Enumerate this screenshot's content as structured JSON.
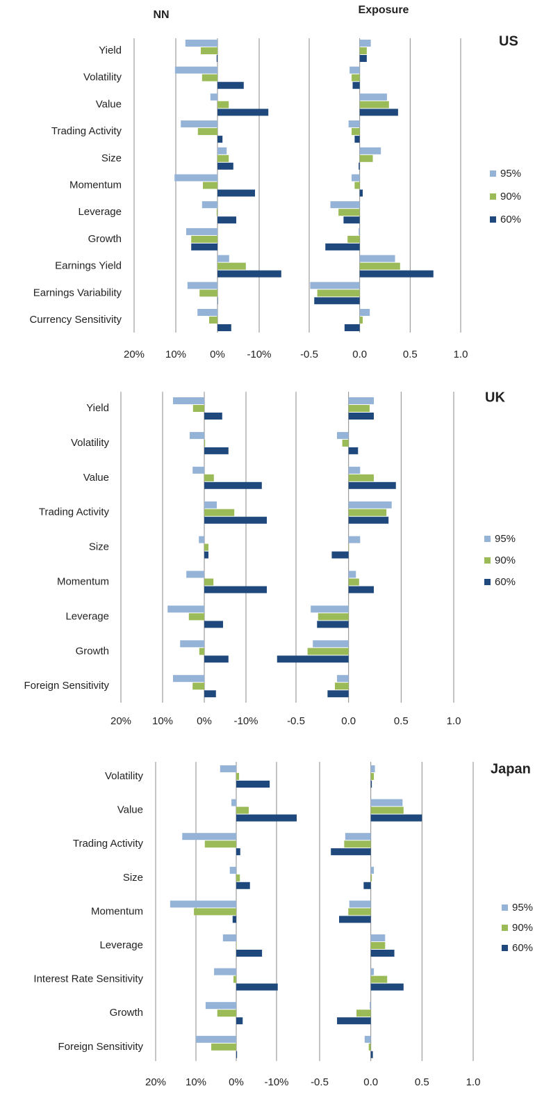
{
  "chart_data": [
    {
      "type": "bar",
      "title": "NN",
      "categories": [
        "Yield",
        "Volatility",
        "Value",
        "Trading Activity",
        "Size",
        "Momentum",
        "Leverage",
        "Growth",
        "Earnings Yield",
        "Earnings Variability",
        "Currency Sensitivity"
      ],
      "series": [
        {
          "color": "#95b3d7",
          "values": [
            7.7,
            10.2,
            1.7,
            8.8,
            -2.2,
            10.3,
            3.7,
            7.5,
            -2.8,
            7.2,
            4.8
          ]
        },
        {
          "color": "#9bbb59",
          "values": [
            4,
            3.7,
            -2.7,
            4.7,
            -2.7,
            3.5,
            0.2,
            6.3,
            -6.8,
            4.3,
            2
          ]
        },
        {
          "color": "#1f497d",
          "values": [
            0.2,
            -6.3,
            -12.2,
            -1.2,
            -3.8,
            -9,
            -4.5,
            6.3,
            -15.3,
            0,
            -3.3
          ]
        }
      ],
      "xlim": [
        20,
        -20
      ],
      "xticks": [
        {
          "value": 20,
          "label": "20%"
        },
        {
          "value": 10,
          "label": "10%"
        },
        {
          "value": 0,
          "label": "0%"
        },
        {
          "value": -10,
          "label": "-10%"
        }
      ]
    },
    {
      "type": "bar",
      "title": "Exposure",
      "annotation": "US",
      "series": [
        {
          "name": "95%",
          "color": "#95b3d7",
          "values": [
            0.11,
            -0.1,
            0.27,
            -0.11,
            0.21,
            -0.08,
            -0.29,
            -0.01,
            0.35,
            -0.49,
            0.1
          ]
        },
        {
          "name": "90%",
          "color": "#9bbb59",
          "values": [
            0.07,
            -0.08,
            0.29,
            -0.08,
            0.13,
            -0.05,
            -0.21,
            -0.12,
            0.4,
            -0.42,
            0.03
          ]
        },
        {
          "name": "60%",
          "color": "#1f497d",
          "values": [
            0.07,
            -0.07,
            0.38,
            -0.05,
            -0.01,
            0.03,
            -0.16,
            -0.34,
            0.73,
            -0.45,
            -0.15
          ]
        }
      ],
      "xlim": [
        -0.5,
        1
      ],
      "xticks": [
        -0.5,
        {
          "value": 0,
          "label": "0.0"
        },
        0.5,
        {
          "value": 1,
          "label": "1.0"
        }
      ]
    },
    {
      "type": "bar",
      "categories": [
        "Yield",
        "Volatility",
        "Value",
        "Trading Activity",
        "Size",
        "Momentum",
        "Leverage",
        "Growth",
        "Foreign Sensitivity"
      ],
      "series": [
        {
          "color": "#95b3d7",
          "values": [
            7.5,
            3.5,
            2.8,
            -3,
            1.3,
            4.3,
            8.8,
            5.8,
            7.5
          ]
        },
        {
          "color": "#9bbb59",
          "values": [
            2.7,
            -0.2,
            -2.3,
            -7.2,
            -1,
            -2.2,
            3.7,
            1.2,
            2.8
          ]
        },
        {
          "color": "#1f497d",
          "values": [
            -4.3,
            -5.8,
            -13.8,
            -15,
            -1,
            -15,
            -4.5,
            -5.8,
            -2.8
          ]
        }
      ],
      "xlim": [
        20,
        -20
      ],
      "xticks": [
        {
          "value": 20,
          "label": "20%"
        },
        {
          "value": 10,
          "label": "10%"
        },
        {
          "value": 0,
          "label": "0%"
        },
        {
          "value": -10,
          "label": "-10%"
        }
      ]
    },
    {
      "type": "bar",
      "annotation": "UK",
      "series": [
        {
          "name": "95%",
          "color": "#95b3d7",
          "values": [
            0.24,
            -0.11,
            0.11,
            0.41,
            0.11,
            0.07,
            -0.36,
            -0.34,
            -0.11
          ]
        },
        {
          "name": "90%",
          "color": "#9bbb59",
          "values": [
            0.2,
            -0.06,
            0.24,
            0.36,
            0,
            0.1,
            -0.29,
            -0.39,
            -0.13
          ]
        },
        {
          "name": "60%",
          "color": "#1f497d",
          "values": [
            0.24,
            0.09,
            0.45,
            0.38,
            -0.16,
            0.24,
            -0.3,
            -0.68,
            -0.2
          ]
        }
      ],
      "xlim": [
        -0.5,
        1
      ],
      "xticks": [
        -0.5,
        {
          "value": 0,
          "label": "0.0"
        },
        0.5,
        {
          "value": 1,
          "label": "1.0"
        }
      ]
    },
    {
      "type": "bar",
      "categories": [
        "Volatility",
        "Value",
        "Trading Activity",
        "Size",
        "Momentum",
        "Leverage",
        "Interest Rate Sensitivity",
        "Growth",
        "Foreign Sensitivity"
      ],
      "series": [
        {
          "color": "#95b3d7",
          "values": [
            4,
            1.2,
            13.4,
            1.6,
            16.4,
            3.3,
            5.5,
            7.6,
            10
          ]
        },
        {
          "color": "#9bbb59",
          "values": [
            -0.7,
            -3.1,
            7.8,
            -0.9,
            10.5,
            0,
            0.7,
            4.7,
            6.2
          ]
        },
        {
          "color": "#1f497d",
          "values": [
            -8.3,
            -15,
            -1,
            -3.4,
            0.9,
            -6.4,
            -10.3,
            -1.6,
            -0.2
          ]
        }
      ],
      "xlim": [
        20,
        -20
      ],
      "xticks": [
        {
          "value": 20,
          "label": "20%"
        },
        {
          "value": 10,
          "label": "10%"
        },
        {
          "value": 0,
          "label": "0%"
        },
        {
          "value": -10,
          "label": "-10%"
        }
      ]
    },
    {
      "type": "bar",
      "annotation": "Japan",
      "series": [
        {
          "name": "95%",
          "color": "#95b3d7",
          "values": [
            0.04,
            0.31,
            -0.25,
            0.03,
            -0.21,
            0.14,
            0.03,
            -0.01,
            -0.06
          ]
        },
        {
          "name": "90%",
          "color": "#9bbb59",
          "values": [
            0.03,
            0.32,
            -0.26,
            0.01,
            -0.22,
            0.14,
            0.16,
            -0.14,
            -0.02
          ]
        },
        {
          "name": "60%",
          "color": "#1f497d",
          "values": [
            0.01,
            0.5,
            -0.39,
            -0.07,
            -0.31,
            0.23,
            0.32,
            -0.33,
            0.02
          ]
        }
      ],
      "xlim": [
        -0.5,
        1
      ],
      "xticks": [
        -0.5,
        {
          "value": 0,
          "label": "0.0"
        },
        0.5,
        {
          "value": 1,
          "label": "1.0"
        }
      ]
    }
  ]
}
